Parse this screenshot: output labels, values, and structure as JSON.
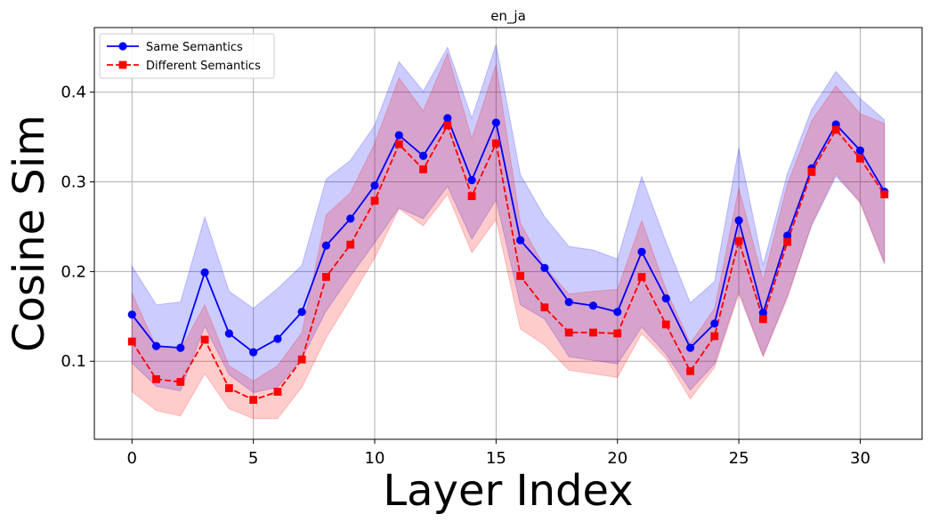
{
  "chart_data": {
    "type": "line",
    "title": "en_ja",
    "xlabel": "Layer Index",
    "ylabel": "Cosine Sim",
    "xlim": [
      -1.55,
      32.55
    ],
    "ylim": [
      0.013,
      0.472
    ],
    "xticks": [
      0,
      5,
      10,
      15,
      20,
      25,
      30
    ],
    "yticks": [
      0.1,
      0.2,
      0.3,
      0.4
    ],
    "ytick_labels": [
      "0.1",
      "0.2",
      "0.3",
      "0.4"
    ],
    "grid": true,
    "legend_position": "top-left",
    "x": [
      0,
      1,
      2,
      3,
      4,
      5,
      6,
      7,
      8,
      9,
      10,
      11,
      12,
      13,
      14,
      15,
      16,
      17,
      18,
      19,
      20,
      21,
      22,
      23,
      24,
      25,
      26,
      27,
      28,
      29,
      30,
      31
    ],
    "series": [
      {
        "name": "Same Semantics",
        "color": "#0000ff",
        "marker": "circle",
        "linestyle": "solid",
        "values": [
          0.152,
          0.117,
          0.115,
          0.199,
          0.131,
          0.11,
          0.125,
          0.155,
          0.229,
          0.259,
          0.296,
          0.352,
          0.329,
          0.371,
          0.302,
          0.366,
          0.235,
          0.204,
          0.166,
          0.162,
          0.155,
          0.222,
          0.17,
          0.115,
          0.142,
          0.257,
          0.154,
          0.24,
          0.315,
          0.364,
          0.335,
          0.289
        ],
        "upper": [
          0.206,
          0.163,
          0.166,
          0.261,
          0.178,
          0.159,
          0.181,
          0.207,
          0.303,
          0.324,
          0.363,
          0.434,
          0.401,
          0.45,
          0.371,
          0.453,
          0.308,
          0.261,
          0.228,
          0.224,
          0.214,
          0.306,
          0.233,
          0.165,
          0.189,
          0.338,
          0.207,
          0.309,
          0.381,
          0.423,
          0.393,
          0.369
        ],
        "lower": [
          0.098,
          0.072,
          0.067,
          0.139,
          0.085,
          0.065,
          0.071,
          0.103,
          0.156,
          0.195,
          0.232,
          0.271,
          0.259,
          0.295,
          0.236,
          0.28,
          0.163,
          0.147,
          0.105,
          0.101,
          0.097,
          0.138,
          0.108,
          0.068,
          0.097,
          0.178,
          0.106,
          0.173,
          0.251,
          0.306,
          0.278,
          0.21
        ]
      },
      {
        "name": "Different Semantics",
        "color": "#ff0000",
        "marker": "square",
        "linestyle": "dashed",
        "values": [
          0.122,
          0.08,
          0.077,
          0.124,
          0.07,
          0.057,
          0.066,
          0.102,
          0.194,
          0.23,
          0.279,
          0.342,
          0.314,
          0.363,
          0.284,
          0.343,
          0.195,
          0.16,
          0.132,
          0.132,
          0.131,
          0.194,
          0.141,
          0.089,
          0.128,
          0.234,
          0.147,
          0.233,
          0.311,
          0.358,
          0.326,
          0.286
        ],
        "upper": [
          0.176,
          0.116,
          0.113,
          0.163,
          0.095,
          0.078,
          0.095,
          0.132,
          0.263,
          0.288,
          0.343,
          0.416,
          0.379,
          0.443,
          0.348,
          0.431,
          0.254,
          0.205,
          0.175,
          0.178,
          0.18,
          0.257,
          0.18,
          0.12,
          0.159,
          0.293,
          0.19,
          0.297,
          0.368,
          0.407,
          0.376,
          0.365
        ],
        "lower": [
          0.066,
          0.045,
          0.039,
          0.086,
          0.047,
          0.036,
          0.036,
          0.071,
          0.126,
          0.17,
          0.215,
          0.27,
          0.251,
          0.286,
          0.221,
          0.258,
          0.136,
          0.118,
          0.09,
          0.086,
          0.082,
          0.131,
          0.103,
          0.058,
          0.093,
          0.175,
          0.105,
          0.17,
          0.253,
          0.309,
          0.276,
          0.208
        ]
      }
    ]
  }
}
